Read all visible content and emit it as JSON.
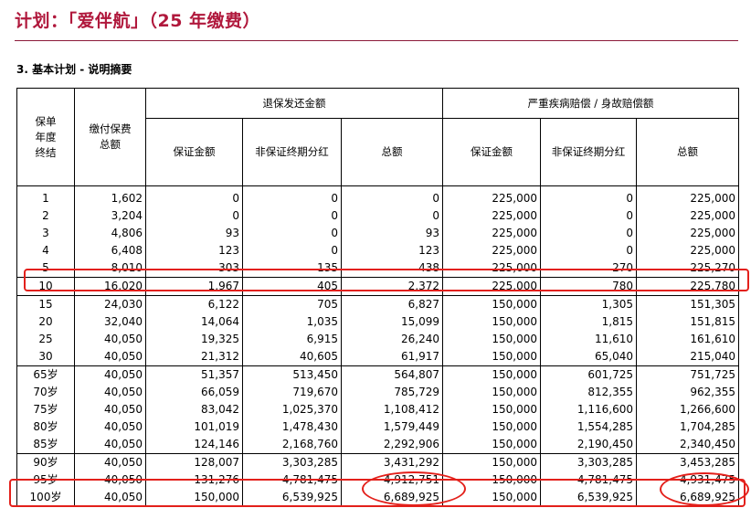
{
  "title": "计划：「爱伴航」（25 年缴费）",
  "section": "3. 基本计划 - 说明摘要",
  "headers": {
    "year": "保单年度终结",
    "premium": "缴付保费总额",
    "refund_group": "退保发还金额",
    "death_group": "严重疾病赔偿 / 身故赔偿额",
    "guaranteed": "保证金额",
    "non_guaranteed": "非保证终期分红",
    "total": "总额"
  },
  "rows": [
    {
      "year": "1",
      "premium": "1,602",
      "sv_g": "0",
      "sv_ng": "0",
      "sv_total": "0",
      "db_g": "225,000",
      "db_ng": "0",
      "db_total": "225,000"
    },
    {
      "year": "2",
      "premium": "3,204",
      "sv_g": "0",
      "sv_ng": "0",
      "sv_total": "0",
      "db_g": "225,000",
      "db_ng": "0",
      "db_total": "225,000"
    },
    {
      "year": "3",
      "premium": "4,806",
      "sv_g": "93",
      "sv_ng": "0",
      "sv_total": "93",
      "db_g": "225,000",
      "db_ng": "0",
      "db_total": "225,000"
    },
    {
      "year": "4",
      "premium": "6,408",
      "sv_g": "123",
      "sv_ng": "0",
      "sv_total": "123",
      "db_g": "225,000",
      "db_ng": "0",
      "db_total": "225,000"
    },
    {
      "year": "5",
      "premium": "8,010",
      "sv_g": "303",
      "sv_ng": "135",
      "sv_total": "438",
      "db_g": "225,000",
      "db_ng": "270",
      "db_total": "225,270"
    },
    {
      "year": "10",
      "premium": "16,020",
      "sv_g": "1,967",
      "sv_ng": "405",
      "sv_total": "2,372",
      "db_g": "225,000",
      "db_ng": "780",
      "db_total": "225,780"
    },
    {
      "year": "15",
      "premium": "24,030",
      "sv_g": "6,122",
      "sv_ng": "705",
      "sv_total": "6,827",
      "db_g": "150,000",
      "db_ng": "1,305",
      "db_total": "151,305"
    },
    {
      "year": "20",
      "premium": "32,040",
      "sv_g": "14,064",
      "sv_ng": "1,035",
      "sv_total": "15,099",
      "db_g": "150,000",
      "db_ng": "1,815",
      "db_total": "151,815"
    },
    {
      "year": "25",
      "premium": "40,050",
      "sv_g": "19,325",
      "sv_ng": "6,915",
      "sv_total": "26,240",
      "db_g": "150,000",
      "db_ng": "11,610",
      "db_total": "161,610"
    },
    {
      "year": "30",
      "premium": "40,050",
      "sv_g": "21,312",
      "sv_ng": "40,605",
      "sv_total": "61,917",
      "db_g": "150,000",
      "db_ng": "65,040",
      "db_total": "215,040"
    },
    {
      "year": "65岁",
      "premium": "40,050",
      "sv_g": "51,357",
      "sv_ng": "513,450",
      "sv_total": "564,807",
      "db_g": "150,000",
      "db_ng": "601,725",
      "db_total": "751,725"
    },
    {
      "year": "70岁",
      "premium": "40,050",
      "sv_g": "66,059",
      "sv_ng": "719,670",
      "sv_total": "785,729",
      "db_g": "150,000",
      "db_ng": "812,355",
      "db_total": "962,355"
    },
    {
      "year": "75岁",
      "premium": "40,050",
      "sv_g": "83,042",
      "sv_ng": "1,025,370",
      "sv_total": "1,108,412",
      "db_g": "150,000",
      "db_ng": "1,116,600",
      "db_total": "1,266,600"
    },
    {
      "year": "80岁",
      "premium": "40,050",
      "sv_g": "101,019",
      "sv_ng": "1,478,430",
      "sv_total": "1,579,449",
      "db_g": "150,000",
      "db_ng": "1,554,285",
      "db_total": "1,704,285"
    },
    {
      "year": "85岁",
      "premium": "40,050",
      "sv_g": "124,146",
      "sv_ng": "2,168,760",
      "sv_total": "2,292,906",
      "db_g": "150,000",
      "db_ng": "2,190,450",
      "db_total": "2,340,450"
    },
    {
      "year": "90岁",
      "premium": "40,050",
      "sv_g": "128,007",
      "sv_ng": "3,303,285",
      "sv_total": "3,431,292",
      "db_g": "150,000",
      "db_ng": "3,303,285",
      "db_total": "3,453,285"
    },
    {
      "year": "95岁",
      "premium": "40,050",
      "sv_g": "131,276",
      "sv_ng": "4,781,475",
      "sv_total": "4,912,751",
      "db_g": "150,000",
      "db_ng": "4,781,475",
      "db_total": "4,931,475"
    },
    {
      "year": "100岁",
      "premium": "40,050",
      "sv_g": "150,000",
      "sv_ng": "6,539,925",
      "sv_total": "6,689,925",
      "db_g": "150,000",
      "db_ng": "6,539,925",
      "db_total": "6,689,925"
    }
  ],
  "highlight_color": "#e3201b",
  "title_color": "#b0183c"
}
